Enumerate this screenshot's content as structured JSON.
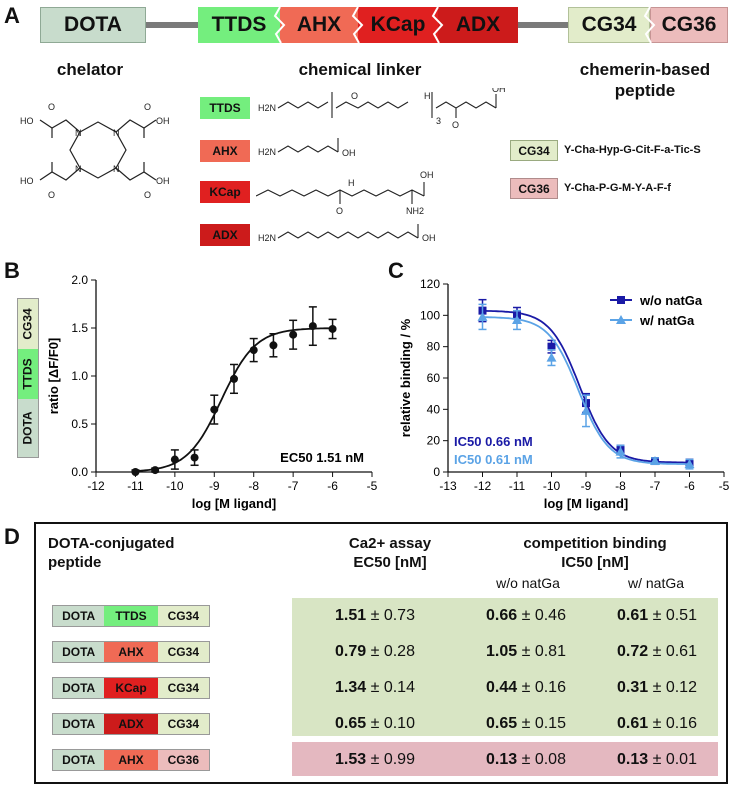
{
  "panelA": {
    "letter": "A",
    "bar": {
      "dota": "DOTA",
      "ttds": "TTDS",
      "ahx": "AHX",
      "kcap": "KCap",
      "adx": "ADX",
      "cg34": "CG34",
      "cg36": "CG36"
    },
    "captions": {
      "chelator": "chelator",
      "linker": "chemical linker",
      "peptide_line1": "chemerin-based",
      "peptide_line2": "peptide"
    },
    "linker_labels": [
      "TTDS",
      "AHX",
      "KCap",
      "ADX"
    ],
    "peptides": [
      {
        "label": "CG34",
        "sequence": "Y-Cha-Hyp-G-Cit-F-a-Tic-S"
      },
      {
        "label": "CG36",
        "sequence": "Y-Cha-P-G-M-Y-A-F-f"
      }
    ],
    "chem": {
      "oh": "OH",
      "ho": "HO",
      "o": "O",
      "h2n": "H2N",
      "nh2": "NH2",
      "n": "N",
      "h": "H",
      "sub3": "3"
    }
  },
  "panelB": {
    "letter": "B",
    "vertical_label": [
      "DOTA",
      "TTDS",
      "CG34"
    ],
    "annotation": "EC50 1.51 nM"
  },
  "panelC": {
    "letter": "C",
    "legend": [
      "w/o natGa",
      "w/ natGa"
    ],
    "ic50_1": "IC50 0.66 nM",
    "ic50_2": "IC50 0.61 nM"
  },
  "chart_data": [
    {
      "type": "scatter",
      "title": "",
      "xlabel": "log [M ligand]",
      "ylabel": "ratio [ΔF/F0]",
      "xlim": [
        -12,
        -5
      ],
      "ylim": [
        0,
        2.0
      ],
      "xticks": [
        -12,
        -11,
        -10,
        -9,
        -8,
        -7,
        -6,
        -5
      ],
      "yticks": [
        0.0,
        0.5,
        1.0,
        1.5,
        2.0
      ],
      "series": [
        {
          "x": [
            -11,
            -10.5,
            -10,
            -9.5,
            -9,
            -8.5,
            -8,
            -7.5,
            -7,
            -6.5,
            -6
          ],
          "y": [
            0.0,
            0.02,
            0.13,
            0.15,
            0.65,
            0.97,
            1.27,
            1.32,
            1.43,
            1.52,
            1.49
          ],
          "err": [
            0.02,
            0.02,
            0.1,
            0.08,
            0.15,
            0.15,
            0.12,
            0.12,
            0.15,
            0.2,
            0.1
          ]
        }
      ],
      "annotations": [
        "EC50 1.51 nM"
      ]
    },
    {
      "type": "scatter",
      "title": "",
      "xlabel": "log [M ligand]",
      "ylabel": "relative binding / %",
      "xlim": [
        -13,
        -5
      ],
      "ylim": [
        0,
        120
      ],
      "xticks": [
        -13,
        -12,
        -11,
        -10,
        -9,
        -8,
        -7,
        -6,
        -5
      ],
      "yticks": [
        0,
        20,
        40,
        60,
        80,
        100,
        120
      ],
      "series": [
        {
          "name": "w/o natGa",
          "color": "#1a1aa6",
          "x": [
            -12,
            -11,
            -10,
            -9,
            -8,
            -7,
            -6
          ],
          "y": [
            103,
            100,
            80,
            44,
            14,
            7,
            6
          ],
          "err": [
            7,
            5,
            4,
            6,
            3,
            1,
            2
          ]
        },
        {
          "name": "w/ natGa",
          "color": "#5ba3e6",
          "x": [
            -12,
            -11,
            -10,
            -9,
            -8,
            -7,
            -6
          ],
          "y": [
            99,
            97,
            73,
            39,
            13,
            7,
            5
          ],
          "err": [
            8,
            6,
            5,
            10,
            4,
            2,
            3
          ]
        }
      ],
      "legend": "top-right",
      "annotations": [
        "IC50 0.66 nM",
        "IC50 0.61 nM"
      ]
    }
  ],
  "panelD": {
    "letter": "D",
    "col1_line1": "DOTA-conjugated",
    "col1_line2": "peptide",
    "col2_line1": "Ca2+ assay",
    "col2_line2": "EC50 [nM]",
    "col3_line1": "competition binding",
    "col3_line2": "IC50 [nM]",
    "sub_wo": "w/o natGa",
    "sub_w": "w/ natGa",
    "rows": [
      {
        "dota": "DOTA",
        "linker": "TTDS",
        "linker_color": "#74ee7e",
        "peptide": "CG34",
        "peptide_color": "#e2ecca",
        "ec50": "1.51",
        "ec50_err": "± 0.73",
        "ic_wo": "0.66",
        "ic_wo_err": "± 0.46",
        "ic_w": "0.61",
        "ic_w_err": "± 0.51"
      },
      {
        "dota": "DOTA",
        "linker": "AHX",
        "linker_color": "#f06a55",
        "peptide": "CG34",
        "peptide_color": "#e2ecca",
        "ec50": "0.79",
        "ec50_err": "± 0.28",
        "ic_wo": "1.05",
        "ic_wo_err": "± 0.81",
        "ic_w": "0.72",
        "ic_w_err": "± 0.61"
      },
      {
        "dota": "DOTA",
        "linker": "KCap",
        "linker_color": "#e02020",
        "peptide": "CG34",
        "peptide_color": "#e2ecca",
        "ec50": "1.34",
        "ec50_err": "± 0.14",
        "ic_wo": "0.44",
        "ic_wo_err": "± 0.16",
        "ic_w": "0.31",
        "ic_w_err": "± 0.12"
      },
      {
        "dota": "DOTA",
        "linker": "ADX",
        "linker_color": "#cc1b1b",
        "peptide": "CG34",
        "peptide_color": "#e2ecca",
        "ec50": "0.65",
        "ec50_err": "± 0.10",
        "ic_wo": "0.65",
        "ic_wo_err": "± 0.15",
        "ic_w": "0.61",
        "ic_w_err": "± 0.16"
      },
      {
        "dota": "DOTA",
        "linker": "AHX",
        "linker_color": "#f06a55",
        "peptide": "CG36",
        "peptide_color": "#ecbcbc",
        "ec50": "1.53",
        "ec50_err": "± 0.99",
        "ic_wo": "0.13",
        "ic_wo_err": "± 0.08",
        "ic_w": "0.13",
        "ic_w_err": "± 0.01"
      }
    ],
    "colors": {
      "cg34_bg": "#d8e5c4",
      "cg36_bg": "#e4b8c0",
      "dota": "#c8dccc"
    }
  }
}
